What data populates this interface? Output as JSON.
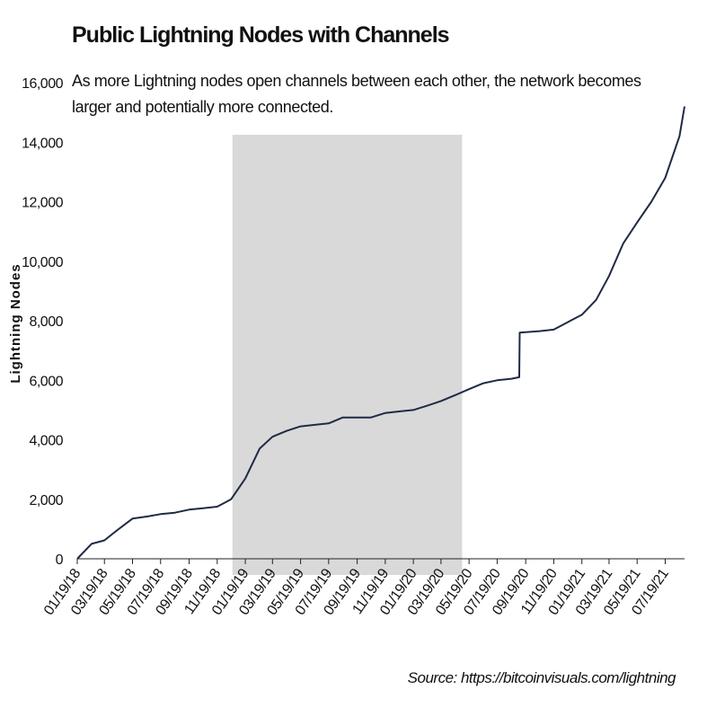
{
  "chart_data": {
    "type": "line",
    "title": "Public Lightning Nodes with Channels",
    "subtitle": "As more Lightning nodes open channels between each other, the network becomes larger and potentially more connected.",
    "y_label": "Lightning Nodes",
    "source": "Source: https://bitcoinvisuals.com/lightning",
    "shaded_range": [
      "12/22/18",
      "05/04/20"
    ],
    "shade_color": "#d9d9d9",
    "xlim": [
      "01/19/18",
      "08/30/21"
    ],
    "xticks": [
      "01/19/18",
      "03/19/18",
      "05/19/18",
      "07/19/18",
      "09/19/18",
      "11/19/18",
      "01/19/19",
      "03/19/19",
      "05/19/19",
      "07/19/19",
      "09/19/19",
      "11/19/19",
      "01/19/20",
      "03/19/20",
      "05/19/20",
      "07/19/20",
      "09/19/20",
      "11/19/20",
      "01/19/21",
      "03/19/21",
      "05/19/21",
      "07/19/21"
    ],
    "ylim": [
      0,
      16000
    ],
    "yticks": [
      0,
      {
        "value": 2000,
        "label": "2,000"
      },
      {
        "value": 4000,
        "label": "4,000"
      },
      {
        "value": 6000,
        "label": "6,000"
      },
      {
        "value": 8000,
        "label": "8,000"
      },
      {
        "value": 10000,
        "label": "10,000"
      },
      {
        "value": 12000,
        "label": "12,000"
      },
      {
        "value": 14000,
        "label": "14,000"
      },
      {
        "value": 16000,
        "label": "16,000"
      }
    ],
    "x": [
      "01/19/18",
      "02/19/18",
      "03/19/18",
      "04/19/18",
      "05/19/18",
      "06/19/18",
      "07/19/18",
      "08/19/18",
      "09/19/18",
      "10/19/18",
      "11/19/18",
      "12/19/18",
      "01/19/19",
      "02/19/19",
      "03/19/19",
      "04/19/19",
      "05/19/19",
      "06/19/19",
      "07/19/19",
      "08/19/19",
      "09/19/19",
      "10/19/19",
      "11/19/19",
      "12/19/19",
      "01/19/20",
      "02/19/20",
      "03/19/20",
      "04/19/20",
      "05/19/20",
      "06/19/20",
      "07/19/20",
      "08/19/20",
      "09/05/20",
      "09/06/20",
      "10/19/20",
      "11/19/20",
      "12/19/20",
      "01/19/21",
      "02/19/21",
      "03/19/21",
      "04/19/21",
      "05/19/21",
      "06/19/21",
      "07/19/21",
      "08/19/21",
      "08/30/21"
    ],
    "series": [
      {
        "name": "Lightning Nodes",
        "color": "#1f2a44",
        "values": [
          0,
          500,
          620,
          1000,
          1350,
          1420,
          1500,
          1550,
          1650,
          1700,
          1750,
          2000,
          2700,
          3700,
          4100,
          4300,
          4450,
          4500,
          4550,
          4750,
          4750,
          4750,
          4900,
          4950,
          5000,
          5150,
          5300,
          5500,
          5700,
          5900,
          6000,
          6050,
          6100,
          7600,
          7650,
          7700,
          7950,
          8200,
          8700,
          9500,
          10600,
          11300,
          12000,
          12800,
          14200,
          15200
        ]
      }
    ]
  }
}
